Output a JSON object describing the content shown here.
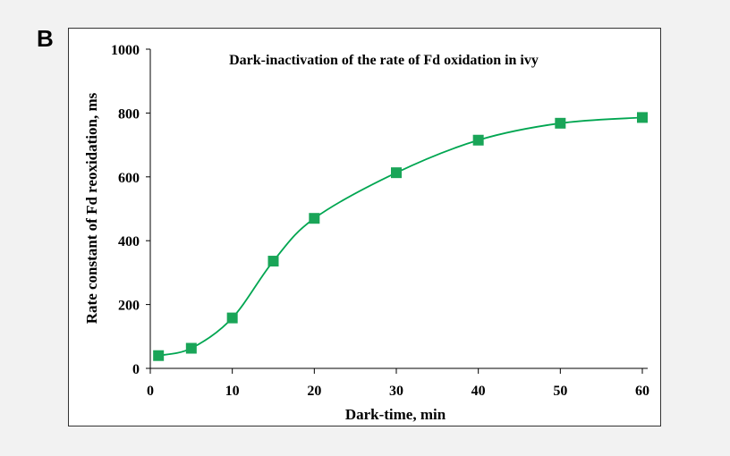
{
  "panel_label": "B",
  "chart_data": {
    "type": "line",
    "title": "Dark-inactivation of the rate of Fd oxidation in ivy",
    "xlabel": "Dark-time, min",
    "ylabel": "Rate constant of Fd reoxidation, ms",
    "xlim": [
      0,
      60
    ],
    "ylim": [
      0,
      1000
    ],
    "x_ticks": [
      0,
      10,
      20,
      30,
      40,
      50,
      60
    ],
    "y_ticks": [
      0,
      200,
      400,
      600,
      800,
      1000
    ],
    "grid": false,
    "legend": "none",
    "series": [
      {
        "color": "#00a651",
        "marker_color": "#1aa558",
        "x": [
          1,
          5,
          10,
          15,
          20,
          30,
          40,
          50,
          60
        ],
        "y": [
          40,
          63,
          158,
          336,
          470,
          613,
          715,
          768,
          786
        ]
      }
    ]
  }
}
